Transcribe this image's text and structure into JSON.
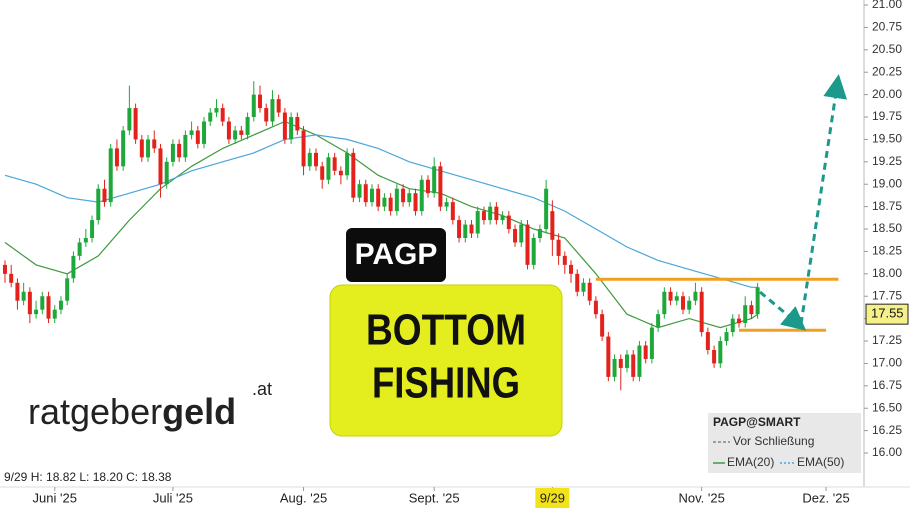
{
  "chart_data": {
    "type": "candlestick",
    "info": "9/29 H: 18.82 L: 18.20 C: 18.38",
    "ohlc": [
      [
        18.1,
        18.15,
        17.9,
        18.0
      ],
      [
        18.0,
        18.1,
        17.85,
        17.9
      ],
      [
        17.9,
        17.95,
        17.6,
        17.7
      ],
      [
        17.7,
        17.9,
        17.65,
        17.8
      ],
      [
        17.8,
        17.85,
        17.45,
        17.55
      ],
      [
        17.55,
        17.7,
        17.5,
        17.6
      ],
      [
        17.6,
        17.8,
        17.55,
        17.75
      ],
      [
        17.75,
        17.8,
        17.45,
        17.5
      ],
      [
        17.5,
        17.65,
        17.45,
        17.6
      ],
      [
        17.6,
        17.75,
        17.55,
        17.7
      ],
      [
        17.7,
        18.0,
        17.65,
        17.95
      ],
      [
        17.95,
        18.25,
        17.9,
        18.2
      ],
      [
        18.2,
        18.4,
        18.15,
        18.35
      ],
      [
        18.35,
        18.5,
        18.3,
        18.4
      ],
      [
        18.4,
        18.65,
        18.35,
        18.6
      ],
      [
        18.6,
        19.0,
        18.55,
        18.95
      ],
      [
        18.95,
        19.05,
        18.75,
        18.8
      ],
      [
        18.8,
        19.45,
        18.75,
        19.4
      ],
      [
        19.4,
        19.5,
        19.15,
        19.2
      ],
      [
        19.2,
        19.65,
        19.15,
        19.6
      ],
      [
        19.6,
        20.1,
        19.55,
        19.85
      ],
      [
        19.85,
        19.9,
        19.45,
        19.5
      ],
      [
        19.5,
        19.55,
        19.25,
        19.3
      ],
      [
        19.3,
        19.55,
        19.25,
        19.5
      ],
      [
        19.5,
        19.6,
        19.35,
        19.4
      ],
      [
        19.4,
        19.45,
        18.85,
        19.0
      ],
      [
        19.0,
        19.3,
        18.95,
        19.25
      ],
      [
        19.25,
        19.5,
        19.2,
        19.45
      ],
      [
        19.45,
        19.5,
        19.25,
        19.3
      ],
      [
        19.3,
        19.6,
        19.25,
        19.55
      ],
      [
        19.55,
        19.7,
        19.5,
        19.6
      ],
      [
        19.6,
        19.65,
        19.4,
        19.45
      ],
      [
        19.45,
        19.75,
        19.4,
        19.7
      ],
      [
        19.7,
        19.85,
        19.65,
        19.8
      ],
      [
        19.8,
        19.95,
        19.75,
        19.85
      ],
      [
        19.85,
        19.9,
        19.65,
        19.7
      ],
      [
        19.7,
        19.75,
        19.45,
        19.5
      ],
      [
        19.5,
        19.65,
        19.45,
        19.6
      ],
      [
        19.6,
        19.65,
        19.5,
        19.55
      ],
      [
        19.55,
        19.8,
        19.5,
        19.75
      ],
      [
        19.75,
        20.15,
        19.7,
        20.0
      ],
      [
        20.0,
        20.1,
        19.8,
        19.85
      ],
      [
        19.85,
        19.9,
        19.65,
        19.7
      ],
      [
        19.7,
        20.05,
        19.65,
        19.95
      ],
      [
        19.95,
        20.0,
        19.75,
        19.8
      ],
      [
        19.8,
        19.85,
        19.45,
        19.5
      ],
      [
        19.5,
        19.8,
        19.45,
        19.75
      ],
      [
        19.75,
        19.8,
        19.55,
        19.6
      ],
      [
        19.6,
        19.65,
        19.1,
        19.2
      ],
      [
        19.2,
        19.4,
        19.15,
        19.35
      ],
      [
        19.35,
        19.4,
        19.15,
        19.2
      ],
      [
        19.2,
        19.25,
        18.95,
        19.05
      ],
      [
        19.05,
        19.35,
        19.0,
        19.3
      ],
      [
        19.3,
        19.35,
        19.1,
        19.15
      ],
      [
        19.15,
        19.2,
        19.0,
        19.1
      ],
      [
        19.1,
        19.4,
        19.05,
        19.35
      ],
      [
        19.35,
        19.4,
        18.8,
        18.85
      ],
      [
        18.85,
        19.05,
        18.8,
        19.0
      ],
      [
        19.0,
        19.05,
        18.75,
        18.8
      ],
      [
        18.8,
        19.0,
        18.75,
        18.95
      ],
      [
        18.95,
        19.0,
        18.7,
        18.75
      ],
      [
        18.75,
        18.9,
        18.7,
        18.85
      ],
      [
        18.85,
        18.9,
        18.65,
        18.7
      ],
      [
        18.7,
        19.0,
        18.65,
        18.95
      ],
      [
        18.95,
        19.0,
        18.75,
        18.8
      ],
      [
        18.8,
        18.95,
        18.75,
        18.9
      ],
      [
        18.9,
        18.95,
        18.65,
        18.7
      ],
      [
        18.7,
        19.1,
        18.65,
        19.05
      ],
      [
        19.05,
        19.1,
        18.85,
        18.9
      ],
      [
        18.9,
        19.3,
        18.85,
        19.2
      ],
      [
        19.2,
        19.25,
        18.7,
        18.75
      ],
      [
        18.75,
        18.85,
        18.7,
        18.8
      ],
      [
        18.8,
        18.85,
        18.55,
        18.6
      ],
      [
        18.6,
        18.65,
        18.35,
        18.4
      ],
      [
        18.4,
        18.6,
        18.35,
        18.55
      ],
      [
        18.55,
        18.6,
        18.4,
        18.45
      ],
      [
        18.45,
        18.75,
        18.4,
        18.7
      ],
      [
        18.7,
        18.75,
        18.55,
        18.6
      ],
      [
        18.6,
        18.8,
        18.55,
        18.75
      ],
      [
        18.75,
        18.8,
        18.55,
        18.6
      ],
      [
        18.6,
        18.7,
        18.55,
        18.65
      ],
      [
        18.65,
        18.7,
        18.45,
        18.5
      ],
      [
        18.5,
        18.55,
        18.3,
        18.35
      ],
      [
        18.35,
        18.6,
        18.3,
        18.55
      ],
      [
        18.55,
        18.6,
        18.05,
        18.1
      ],
      [
        18.1,
        18.45,
        18.05,
        18.4
      ],
      [
        18.4,
        18.55,
        18.35,
        18.5
      ],
      [
        18.5,
        19.05,
        18.45,
        18.95
      ],
      [
        18.7,
        18.82,
        18.2,
        18.38
      ],
      [
        18.38,
        18.45,
        18.1,
        18.2
      ],
      [
        18.2,
        18.25,
        18.0,
        18.1
      ],
      [
        18.1,
        18.15,
        17.9,
        18.0
      ],
      [
        18.0,
        18.05,
        17.75,
        17.8
      ],
      [
        17.8,
        17.95,
        17.75,
        17.9
      ],
      [
        17.9,
        17.95,
        17.65,
        17.7
      ],
      [
        17.7,
        17.75,
        17.5,
        17.55
      ],
      [
        17.55,
        17.6,
        17.25,
        17.3
      ],
      [
        17.3,
        17.35,
        16.8,
        16.85
      ],
      [
        16.85,
        17.1,
        16.8,
        17.05
      ],
      [
        17.05,
        17.1,
        16.7,
        16.95
      ],
      [
        16.95,
        17.15,
        16.9,
        17.1
      ],
      [
        17.1,
        17.15,
        16.8,
        16.85
      ],
      [
        16.85,
        17.25,
        16.8,
        17.2
      ],
      [
        17.2,
        17.25,
        17.0,
        17.05
      ],
      [
        17.05,
        17.45,
        17.0,
        17.4
      ],
      [
        17.4,
        17.6,
        17.35,
        17.55
      ],
      [
        17.55,
        17.85,
        17.5,
        17.8
      ],
      [
        17.8,
        17.85,
        17.65,
        17.7
      ],
      [
        17.7,
        17.8,
        17.65,
        17.75
      ],
      [
        17.75,
        17.8,
        17.55,
        17.6
      ],
      [
        17.6,
        17.75,
        17.55,
        17.7
      ],
      [
        17.7,
        17.9,
        17.65,
        17.8
      ],
      [
        17.8,
        17.85,
        17.3,
        17.35
      ],
      [
        17.35,
        17.4,
        17.1,
        17.15
      ],
      [
        17.15,
        17.2,
        16.95,
        17.0
      ],
      [
        17.0,
        17.3,
        16.95,
        17.25
      ],
      [
        17.25,
        17.4,
        17.2,
        17.35
      ],
      [
        17.35,
        17.55,
        17.3,
        17.5
      ],
      [
        17.5,
        17.55,
        17.4,
        17.45
      ],
      [
        17.45,
        17.75,
        17.4,
        17.65
      ],
      [
        17.65,
        17.7,
        17.5,
        17.55
      ],
      [
        17.55,
        17.9,
        17.5,
        17.85
      ]
    ],
    "up_color": "#1ea83c",
    "down_color": "#e3231b",
    "series": [
      {
        "name": "EMA(20)",
        "color": "#3f9a3f",
        "x": [
          0,
          5,
          10,
          15,
          20,
          25,
          30,
          35,
          40,
          45,
          50,
          55,
          60,
          65,
          70,
          75,
          80,
          85,
          90,
          95,
          100,
          105,
          110,
          115,
          120,
          121
        ],
        "values": [
          18.35,
          18.1,
          18.0,
          18.2,
          18.6,
          18.95,
          19.2,
          19.4,
          19.55,
          19.7,
          19.55,
          19.35,
          19.1,
          18.95,
          18.9,
          18.75,
          18.65,
          18.5,
          18.4,
          18.0,
          17.55,
          17.4,
          17.5,
          17.4,
          17.5,
          17.55
        ]
      },
      {
        "name": "EMA(50)",
        "color": "#4aa6dc",
        "x": [
          0,
          5,
          10,
          15,
          20,
          25,
          30,
          35,
          40,
          45,
          50,
          55,
          60,
          65,
          70,
          75,
          80,
          85,
          90,
          95,
          100,
          105,
          110,
          115,
          120,
          121
        ],
        "values": [
          19.1,
          19.0,
          18.85,
          18.8,
          18.9,
          19.0,
          19.15,
          19.25,
          19.35,
          19.5,
          19.55,
          19.5,
          19.4,
          19.25,
          19.15,
          19.05,
          18.95,
          18.85,
          18.7,
          18.5,
          18.3,
          18.15,
          18.05,
          17.95,
          17.85,
          17.85
        ]
      }
    ],
    "levels": [
      {
        "value": 17.94,
        "from": 95,
        "to": 134
      },
      {
        "value": 17.37,
        "from": 118,
        "to": 132
      }
    ],
    "level_color": "#f0a020",
    "last_price": 17.55,
    "xlim": [
      -0.8,
      138.1
    ],
    "xticks": [
      {
        "value": 8,
        "label": "Juni '25"
      },
      {
        "value": 27,
        "label": "Juli '25"
      },
      {
        "value": 48,
        "label": "Aug. '25"
      },
      {
        "value": 69,
        "label": "Sept. '25"
      },
      {
        "value": 88,
        "label": "9/29",
        "highlight": true
      },
      {
        "value": 112,
        "label": "Nov. '25"
      },
      {
        "value": 132,
        "label": "Dez. '25"
      }
    ],
    "ylim": [
      15.64,
      21.056
    ],
    "yticks": [
      {
        "value": 16,
        "label": "16.00"
      },
      16.25,
      {
        "value": 16.5,
        "label": "16.50"
      },
      16.75,
      {
        "value": 17,
        "label": "17.00"
      },
      17.25,
      {
        "value": 17.5,
        "label": "17.50"
      },
      17.75,
      {
        "value": 18,
        "label": "18.00"
      },
      18.25,
      {
        "value": 18.5,
        "label": "18.50"
      },
      18.75,
      {
        "value": 19,
        "label": "19.00"
      },
      19.25,
      {
        "value": 19.5,
        "label": "19.50"
      },
      19.75,
      {
        "value": 20,
        "label": "20.00"
      },
      20.25,
      {
        "value": 20.5,
        "label": "20.50"
      },
      20.75,
      {
        "value": 21,
        "label": "21.00"
      }
    ],
    "legend": {
      "title": "PAGP@SMART",
      "close": "Vor Schließung"
    },
    "ticker_label": "PAGP",
    "banner": {
      "line1": "BOTTOM",
      "line2": "FISHING"
    },
    "logo": {
      "part1": "ratgeber",
      "part2": "geld",
      "suffix": ".at"
    }
  }
}
